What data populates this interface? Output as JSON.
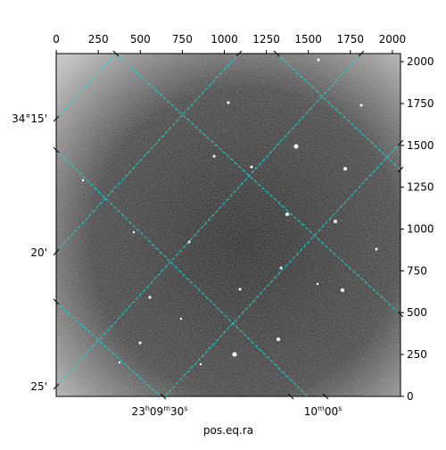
{
  "chart_data": {
    "type": "image",
    "xlabel": "pos.eq.ra",
    "xlim": [
      -0.5,
      2048.5
    ],
    "xticks": [
      0,
      250,
      500,
      750,
      1000,
      1250,
      1500,
      1750,
      2000
    ],
    "ylim": [
      -0.5,
      2048.5
    ],
    "yticks": [
      0,
      250,
      500,
      750,
      1000,
      1250,
      1500,
      1750,
      2000
    ],
    "dec_ticks": [
      "34°15'",
      "20'",
      "25'"
    ],
    "ra_ticks": [
      "23h09m30s",
      "10m00s"
    ]
  }
}
